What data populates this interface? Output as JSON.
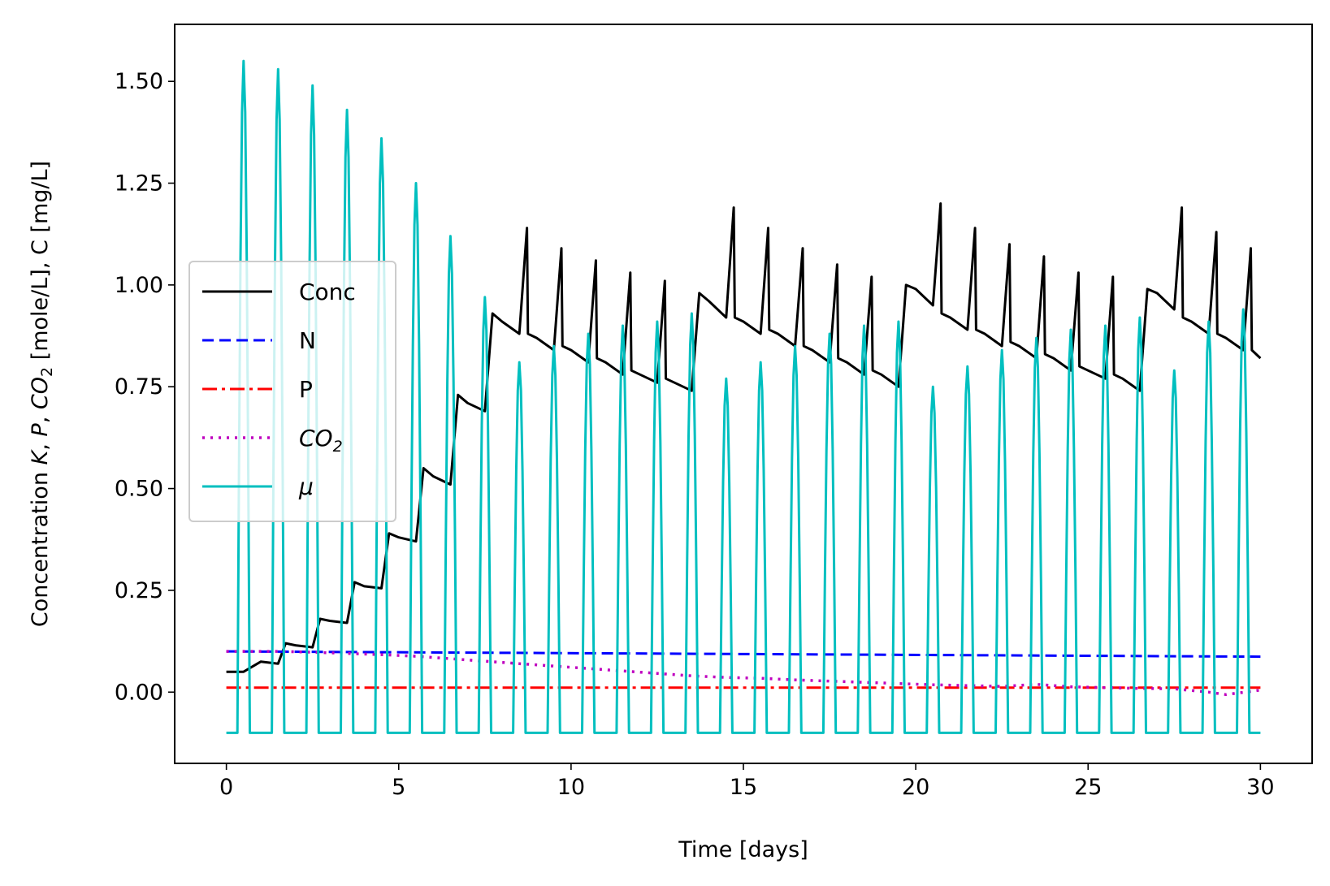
{
  "chart_data": {
    "type": "line",
    "title": "",
    "xlabel": "Time [days]",
    "ylabel_parts": [
      "Concentration ",
      "K",
      ", ",
      "P",
      ", ",
      "CO",
      "2",
      " [mole/L], C [mg/L]"
    ],
    "xlim": [
      -1.5,
      31.5
    ],
    "ylim": [
      -0.175,
      1.64
    ],
    "xticks": [
      0,
      5,
      10,
      15,
      20,
      25,
      30
    ],
    "xtick_labels": [
      "0",
      "5",
      "10",
      "15",
      "20",
      "25",
      "30"
    ],
    "yticks": [
      0.0,
      0.25,
      0.5,
      0.75,
      1.0,
      1.25,
      1.5
    ],
    "ytick_labels": [
      "0.00",
      "0.25",
      "0.50",
      "0.75",
      "1.00",
      "1.25",
      "1.50"
    ],
    "grid": false,
    "legend_position": "center-left",
    "series": [
      {
        "name": "Conc",
        "label_parts": [
          "Conc"
        ],
        "color": "#000000",
        "style": "solid",
        "x": [
          0,
          0.5,
          1.0,
          1.5,
          1.72,
          2.0,
          2.5,
          2.72,
          3.0,
          3.5,
          3.72,
          4.0,
          4.5,
          4.72,
          5.0,
          5.5,
          5.72,
          6.0,
          6.5,
          6.72,
          7.0,
          7.5,
          7.72,
          8.0,
          8.5,
          8.72,
          8.75,
          9.0,
          9.5,
          9.72,
          9.75,
          10.0,
          10.5,
          10.72,
          10.75,
          11.0,
          11.5,
          11.72,
          11.75,
          12.0,
          12.5,
          12.72,
          12.75,
          13.0,
          13.5,
          13.72,
          14.0,
          14.5,
          14.72,
          14.75,
          15.0,
          15.5,
          15.72,
          15.75,
          16.0,
          16.5,
          16.72,
          16.75,
          17.0,
          17.5,
          17.72,
          17.75,
          18.0,
          18.5,
          18.72,
          18.75,
          19.0,
          19.5,
          19.72,
          20.0,
          20.5,
          20.72,
          20.75,
          21.0,
          21.5,
          21.72,
          21.75,
          22.0,
          22.5,
          22.72,
          22.75,
          23.0,
          23.5,
          23.72,
          23.75,
          24.0,
          24.5,
          24.72,
          24.75,
          25.0,
          25.5,
          25.72,
          25.75,
          26.0,
          26.5,
          26.72,
          27.0,
          27.5,
          27.72,
          27.75,
          28.0,
          28.5,
          28.72,
          28.75,
          29.0,
          29.5,
          29.72,
          29.75,
          30.0
        ],
        "y": [
          0.05,
          0.05,
          0.075,
          0.07,
          0.12,
          0.115,
          0.11,
          0.18,
          0.175,
          0.17,
          0.27,
          0.26,
          0.255,
          0.39,
          0.38,
          0.37,
          0.55,
          0.53,
          0.51,
          0.73,
          0.71,
          0.69,
          0.93,
          0.91,
          0.88,
          1.14,
          0.88,
          0.87,
          0.84,
          1.09,
          0.85,
          0.84,
          0.81,
          1.06,
          0.82,
          0.81,
          0.78,
          1.03,
          0.79,
          0.78,
          0.76,
          1.01,
          0.77,
          0.76,
          0.74,
          0.98,
          0.96,
          0.92,
          1.19,
          0.92,
          0.91,
          0.88,
          1.14,
          0.89,
          0.88,
          0.85,
          1.09,
          0.85,
          0.84,
          0.81,
          1.05,
          0.82,
          0.81,
          0.78,
          1.02,
          0.79,
          0.78,
          0.75,
          1.0,
          0.99,
          0.95,
          1.2,
          0.93,
          0.92,
          0.89,
          1.14,
          0.89,
          0.88,
          0.85,
          1.1,
          0.86,
          0.85,
          0.82,
          1.07,
          0.83,
          0.82,
          0.79,
          1.03,
          0.8,
          0.79,
          0.77,
          1.02,
          0.78,
          0.77,
          0.74,
          0.99,
          0.98,
          0.94,
          1.19,
          0.92,
          0.91,
          0.88,
          1.13,
          0.88,
          0.87,
          0.84,
          1.09,
          0.84,
          0.82
        ]
      },
      {
        "name": "N",
        "label_parts": [
          "N"
        ],
        "color": "#0000ff",
        "style": "dashed",
        "x": [
          0,
          30
        ],
        "y": [
          0.1,
          0.087
        ]
      },
      {
        "name": "P",
        "label_parts": [
          "P"
        ],
        "color": "#ff0000",
        "style": "dashdot",
        "x": [
          0,
          30
        ],
        "y": [
          0.011,
          0.011
        ]
      },
      {
        "name": "CO2",
        "label_parts": [
          "CO",
          "2"
        ],
        "color": "#bf00bf",
        "style": "dotted",
        "x": [
          0,
          1.5,
          2.5,
          3.5,
          4.5,
          5.5,
          6.5,
          7.5,
          8.5,
          9.5,
          10.5,
          11.5,
          12.5,
          13.5,
          14.5,
          15.5,
          16.5,
          17.5,
          18.5,
          19.5,
          20.5,
          21.5,
          22.5,
          23.5,
          24.5,
          25.5,
          26.5,
          27.5,
          28.5,
          29.0,
          30.0
        ],
        "y": [
          0.1,
          0.1,
          0.098,
          0.095,
          0.092,
          0.088,
          0.082,
          0.076,
          0.07,
          0.064,
          0.058,
          0.052,
          0.046,
          0.04,
          0.036,
          0.034,
          0.03,
          0.027,
          0.024,
          0.021,
          0.018,
          0.016,
          0.014,
          0.019,
          0.013,
          0.011,
          0.009,
          0.008,
          0.0,
          -0.006,
          0.005
        ]
      },
      {
        "name": "mu",
        "label_parts": [
          "μ"
        ],
        "color": "#00bfbf",
        "style": "solid",
        "kind": "pulses",
        "floor": -0.1,
        "peaks_x": [
          0.5,
          1.5,
          2.5,
          3.5,
          4.5,
          5.5,
          6.5,
          7.5,
          8.5,
          9.5,
          10.5,
          11.5,
          12.5,
          13.5,
          14.5,
          15.5,
          16.5,
          17.5,
          18.5,
          19.5,
          20.5,
          21.5,
          22.5,
          23.5,
          24.5,
          25.5,
          26.5,
          27.5,
          28.5,
          29.5
        ],
        "peaks_y": [
          1.55,
          1.53,
          1.49,
          1.43,
          1.36,
          1.25,
          1.12,
          0.97,
          0.81,
          0.85,
          0.88,
          0.9,
          0.91,
          0.93,
          0.77,
          0.81,
          0.85,
          0.88,
          0.9,
          0.91,
          0.75,
          0.8,
          0.84,
          0.87,
          0.89,
          0.9,
          0.92,
          0.79,
          0.91,
          0.94
        ]
      }
    ]
  }
}
